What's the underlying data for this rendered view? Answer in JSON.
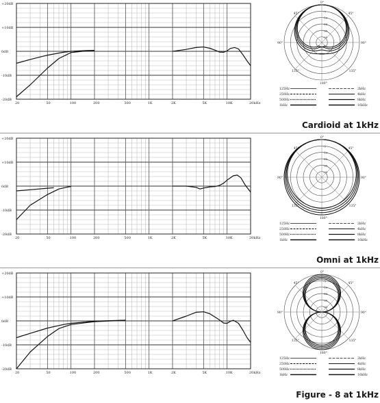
{
  "chart_data": [
    {
      "type": "line",
      "caption": "Cardioid at 1kHz",
      "x_ticks": [
        "20",
        "50",
        "100",
        "200",
        "500",
        "1K",
        "2K",
        "5K",
        "10K",
        "20kHz"
      ],
      "y_ticks": [
        "+20dB",
        "+10dB",
        "0dB",
        "-10dB",
        "-20dB"
      ],
      "xlim": [
        20,
        20000
      ],
      "ylim": [
        -20,
        20
      ],
      "xscale": "log",
      "grid": true,
      "series": [
        {
          "points": [
            [
              20,
              -5
            ],
            [
              30,
              -3.4
            ],
            [
              50,
              -1.6
            ],
            [
              80,
              -0.4
            ],
            [
              100,
              0
            ],
            [
              150,
              0.3
            ],
            [
              200,
              0.4
            ]
          ]
        },
        {
          "points": [
            [
              20,
              -19
            ],
            [
              30,
              -14
            ],
            [
              50,
              -7
            ],
            [
              70,
              -3
            ],
            [
              100,
              -0.5
            ],
            [
              150,
              0.1
            ],
            [
              200,
              0.4
            ]
          ]
        },
        {
          "points": [
            [
              2000,
              0
            ],
            [
              3000,
              0.8
            ],
            [
              4000,
              1.6
            ],
            [
              5000,
              1.8
            ],
            [
              6000,
              1.3
            ],
            [
              7000,
              0.5
            ],
            [
              8000,
              -0.3
            ],
            [
              9000,
              -0.4
            ],
            [
              10000,
              0.2
            ],
            [
              11000,
              1.2
            ],
            [
              12500,
              1.6
            ],
            [
              14000,
              1.0
            ],
            [
              16000,
              -1.5
            ],
            [
              18000,
              -4
            ],
            [
              20000,
              -6
            ]
          ]
        }
      ],
      "polar": {
        "rings": [
          "-5",
          "-10",
          "-15",
          "-20",
          "-25"
        ],
        "angles": [
          "0°",
          "45°",
          "90°",
          "135°",
          "180°"
        ],
        "legend": [
          [
            "125Hz",
            "2kHz"
          ],
          [
            "250Hz",
            "4kHz"
          ],
          [
            "500Hz",
            "8kHz"
          ],
          [
            "1kHz",
            "16kHz"
          ]
        ],
        "pattern": "cardioid"
      }
    },
    {
      "type": "line",
      "caption": "Omni at 1kHz",
      "x_ticks": [
        "20",
        "50",
        "100",
        "200",
        "500",
        "1K",
        "2K",
        "5K",
        "10K",
        "20kHz"
      ],
      "y_ticks": [
        "+20dB",
        "+10dB",
        "0dB",
        "-10dB",
        "-20dB"
      ],
      "xlim": [
        20,
        20000
      ],
      "ylim": [
        -20,
        20
      ],
      "xscale": "log",
      "grid": true,
      "series": [
        {
          "points": [
            [
              20,
              -2
            ],
            [
              30,
              -1.5
            ],
            [
              50,
              -0.9
            ],
            [
              60,
              -0.7
            ]
          ]
        },
        {
          "points": [
            [
              20,
              -14
            ],
            [
              30,
              -8
            ],
            [
              50,
              -3.5
            ],
            [
              70,
              -1.2
            ],
            [
              90,
              -0.4
            ],
            [
              100,
              -0.2
            ]
          ]
        },
        {
          "points": [
            [
              2000,
              0
            ],
            [
              3000,
              0
            ],
            [
              4000,
              -0.5
            ],
            [
              4500,
              -1.2
            ],
            [
              5000,
              -0.8
            ],
            [
              6000,
              -0.3
            ],
            [
              7000,
              -0.2
            ],
            [
              8000,
              0.3
            ],
            [
              9000,
              1.2
            ],
            [
              10000,
              2.5
            ],
            [
              12000,
              4.3
            ],
            [
              13500,
              4.6
            ],
            [
              15000,
              3.5
            ],
            [
              17000,
              0.5
            ],
            [
              20000,
              -2.5
            ]
          ]
        }
      ],
      "polar": {
        "rings": [
          "-5",
          "-10",
          "-15",
          "-20",
          "-25"
        ],
        "angles": [
          "0°",
          "45°",
          "90°",
          "135°",
          "180°"
        ],
        "legend": [
          [
            "125Hz",
            "2kHz"
          ],
          [
            "250Hz",
            "4kHz"
          ],
          [
            "500Hz",
            "8kHz"
          ],
          [
            "1kHz",
            "16kHz"
          ]
        ],
        "pattern": "omni"
      }
    },
    {
      "type": "line",
      "caption": "Figure - 8 at 1kHz",
      "x_ticks": [
        "20",
        "50",
        "100",
        "200",
        "500",
        "1K",
        "2K",
        "5K",
        "10K",
        "20kHz"
      ],
      "y_ticks": [
        "+20dB",
        "+10dB",
        "0dB",
        "-10dB",
        "-20dB"
      ],
      "xlim": [
        20,
        20000
      ],
      "ylim": [
        -20,
        20
      ],
      "xscale": "log",
      "grid": true,
      "series": [
        {
          "points": [
            [
              20,
              -7
            ],
            [
              30,
              -5.2
            ],
            [
              50,
              -3
            ],
            [
              80,
              -1.5
            ],
            [
              100,
              -1
            ],
            [
              200,
              -0.1
            ],
            [
              500,
              0.3
            ]
          ]
        },
        {
          "points": [
            [
              20,
              -20
            ],
            [
              30,
              -13
            ],
            [
              50,
              -6.5
            ],
            [
              70,
              -3.2
            ],
            [
              100,
              -1.5
            ],
            [
              200,
              -0.3
            ],
            [
              500,
              0.3
            ]
          ]
        },
        {
          "points": [
            [
              2000,
              0
            ],
            [
              3000,
              2
            ],
            [
              4000,
              3.6
            ],
            [
              5000,
              3.8
            ],
            [
              6000,
              3
            ],
            [
              7000,
              1.6
            ],
            [
              8000,
              0.4
            ],
            [
              9000,
              -0.9
            ],
            [
              10000,
              -1
            ],
            [
              11000,
              -0.2
            ],
            [
              12000,
              0.3
            ],
            [
              14000,
              -1
            ],
            [
              16000,
              -4
            ],
            [
              18000,
              -7
            ],
            [
              20000,
              -9
            ]
          ]
        }
      ],
      "polar": {
        "rings": [
          "-5",
          "-10",
          "-15",
          "-20",
          "-25"
        ],
        "angles": [
          "0°",
          "45°",
          "90°",
          "135°",
          "180°"
        ],
        "legend": [
          [
            "125Hz",
            "2kHz"
          ],
          [
            "250Hz",
            "4kHz"
          ],
          [
            "500Hz",
            "8kHz"
          ],
          [
            "1kHz",
            "16kHz"
          ]
        ],
        "pattern": "figure-8"
      }
    }
  ]
}
